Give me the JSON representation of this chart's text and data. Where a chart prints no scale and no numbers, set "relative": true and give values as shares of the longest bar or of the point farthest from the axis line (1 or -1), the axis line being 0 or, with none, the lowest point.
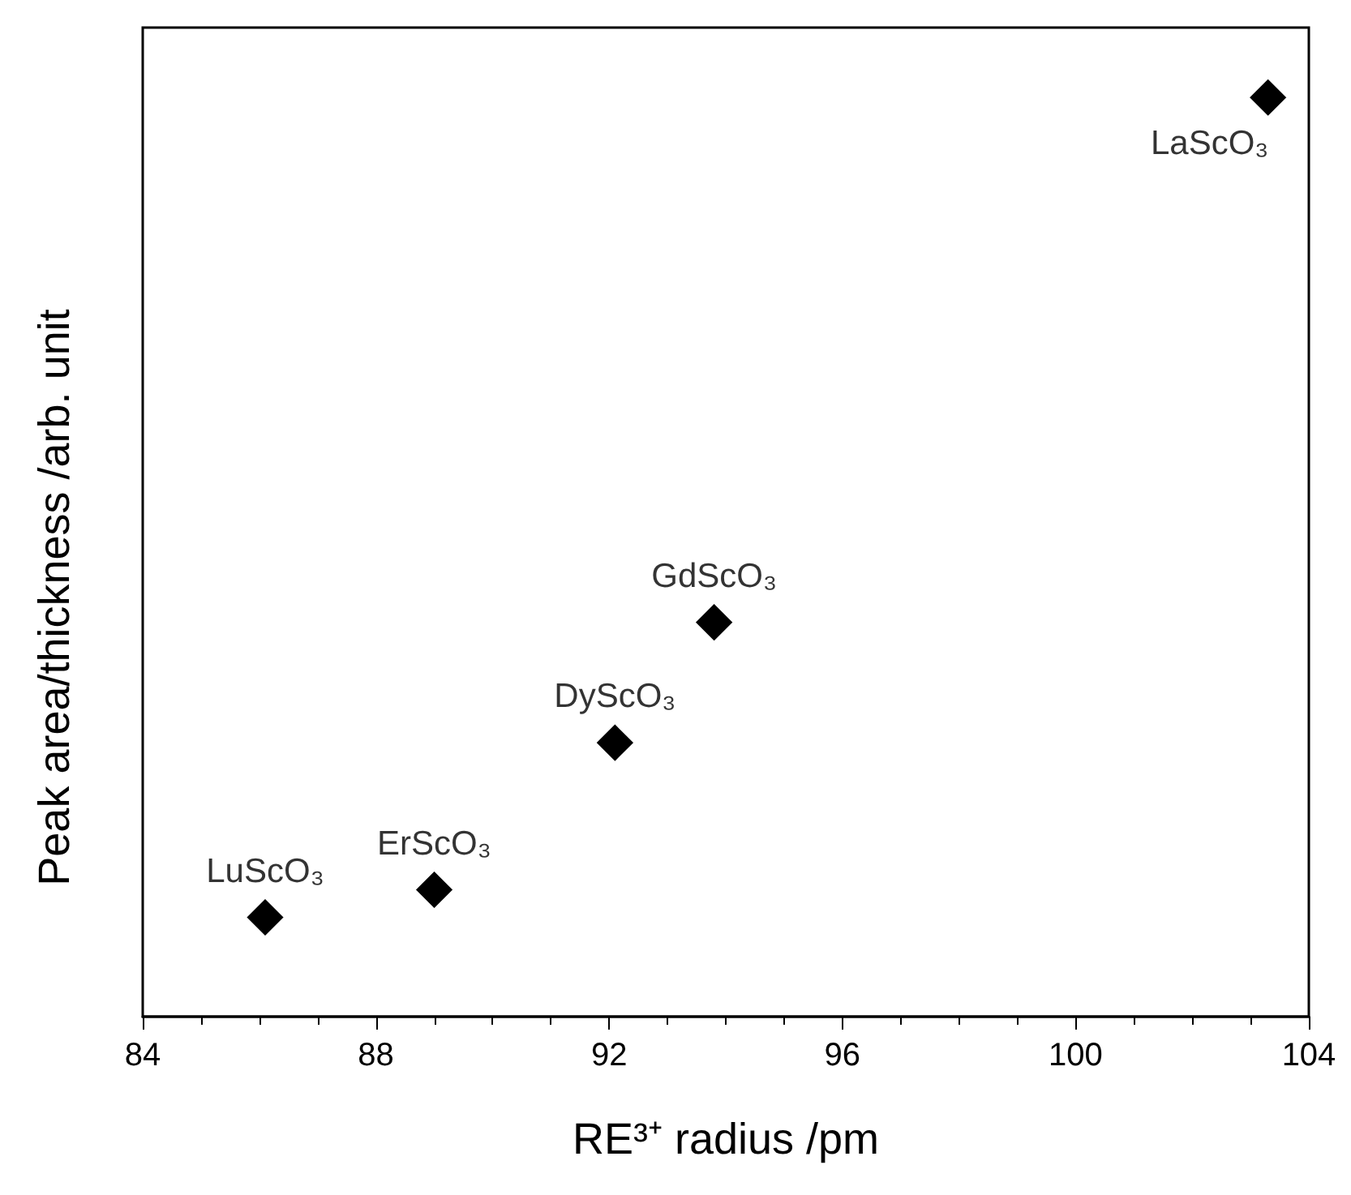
{
  "chart_data": {
    "type": "scatter",
    "relative": true,
    "xlabel": "RE³⁺ radius /pm",
    "ylabel": "Peak area/thickness /arb. unit",
    "xlim": [
      84,
      104
    ],
    "xticks": [
      84,
      88,
      92,
      96,
      100,
      104
    ],
    "marker": "diamond",
    "grid": false,
    "series": [
      {
        "color": "#000000",
        "x": [
          86.1,
          89.0,
          92.1,
          93.8,
          103.3
        ],
        "values": [
          0.108,
          0.138,
          0.298,
          0.429,
          1
        ]
      }
    ],
    "annotations": [
      {
        "text": "LuScO₃",
        "x": 86.1,
        "y": 0.108
      },
      {
        "text": "ErScO₃",
        "x": 89.0,
        "y": 0.138
      },
      {
        "text": "DyScO₃",
        "x": 92.1,
        "y": 0.298
      },
      {
        "text": "GdScO₃",
        "x": 93.8,
        "y": 0.429
      },
      {
        "text": "LaScO₃",
        "x": 103.3,
        "y": 1
      }
    ]
  }
}
